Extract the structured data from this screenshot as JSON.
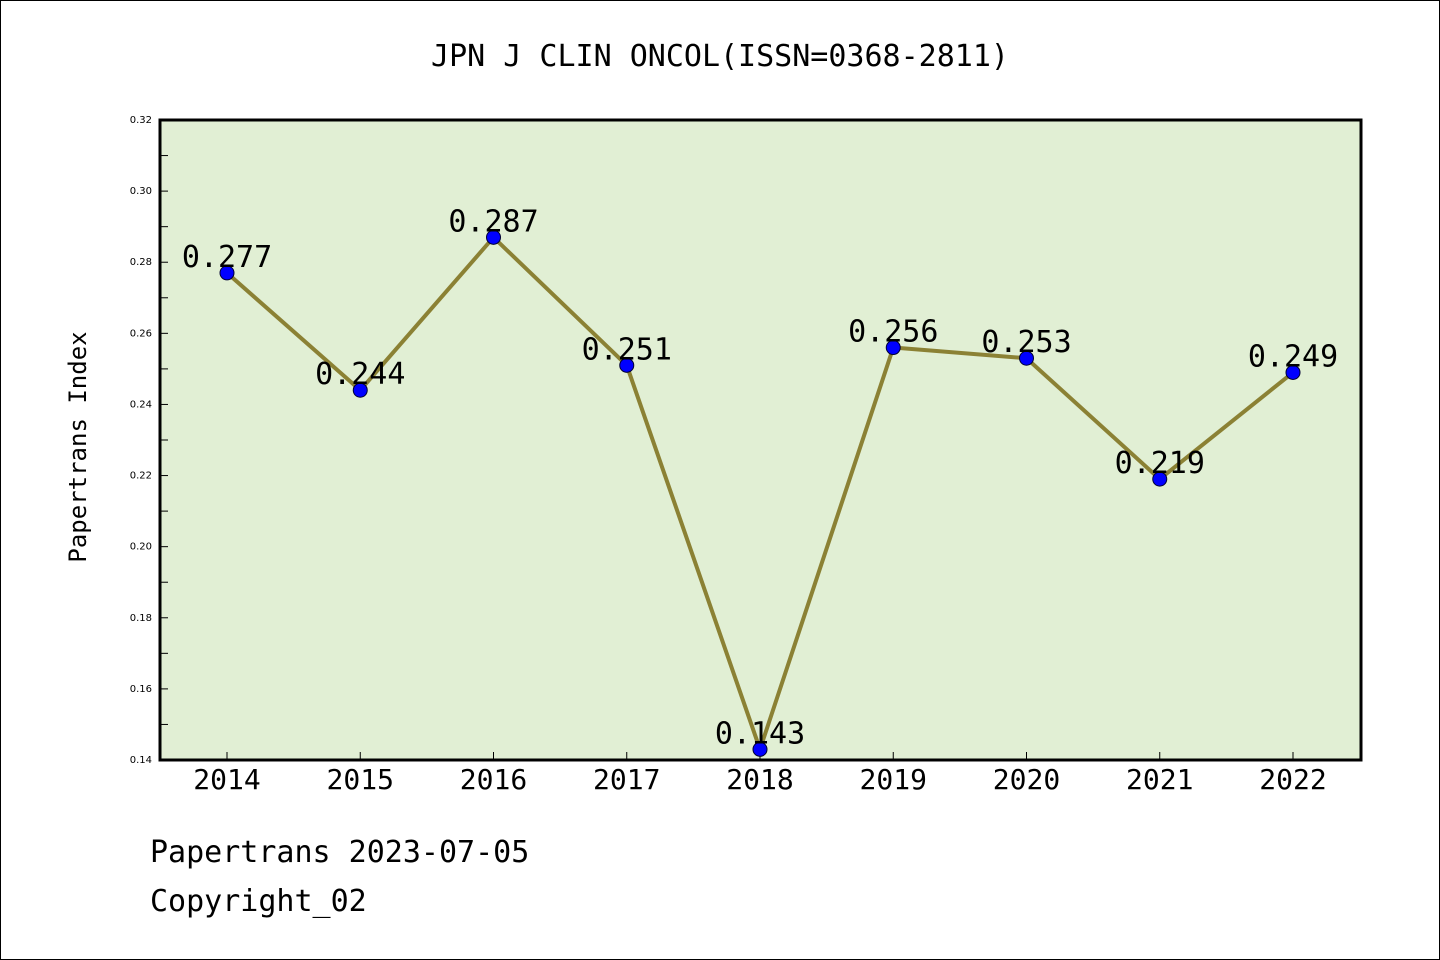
{
  "chart_data": {
    "type": "line",
    "title": "JPN J CLIN ONCOL(ISSN=0368-2811)",
    "xlabel": "",
    "ylabel": "Papertrans Index",
    "x": [
      "2014",
      "2015",
      "2016",
      "2017",
      "2018",
      "2019",
      "2020",
      "2021",
      "2022"
    ],
    "series": [
      {
        "values": [
          0.277,
          0.244,
          0.287,
          0.251,
          0.143,
          0.256,
          0.253,
          0.219,
          0.249
        ],
        "data_labels": [
          "0.277",
          "0.244",
          "0.287",
          "0.251",
          "0.143",
          "0.256",
          "0.253",
          "0.219",
          "0.249"
        ]
      }
    ],
    "ylim": [
      0.14,
      0.32
    ],
    "yticks": [
      0.14,
      0.16,
      0.18,
      0.2,
      0.22,
      0.24,
      0.26,
      0.28,
      0.3,
      0.32
    ],
    "ytick_labels": [
      "0.14",
      "0.16",
      "0.18",
      "0.20",
      "0.22",
      "0.24",
      "0.26",
      "0.28",
      "0.30",
      "0.32"
    ],
    "grid": false,
    "legend": "none",
    "colors": {
      "plot_background": "#e1efd4",
      "line": "#8b8134",
      "marker": "#0000ff"
    }
  },
  "footer": {
    "date_line": "Papertrans 2023-07-05",
    "copyright": "Copyright_02"
  }
}
